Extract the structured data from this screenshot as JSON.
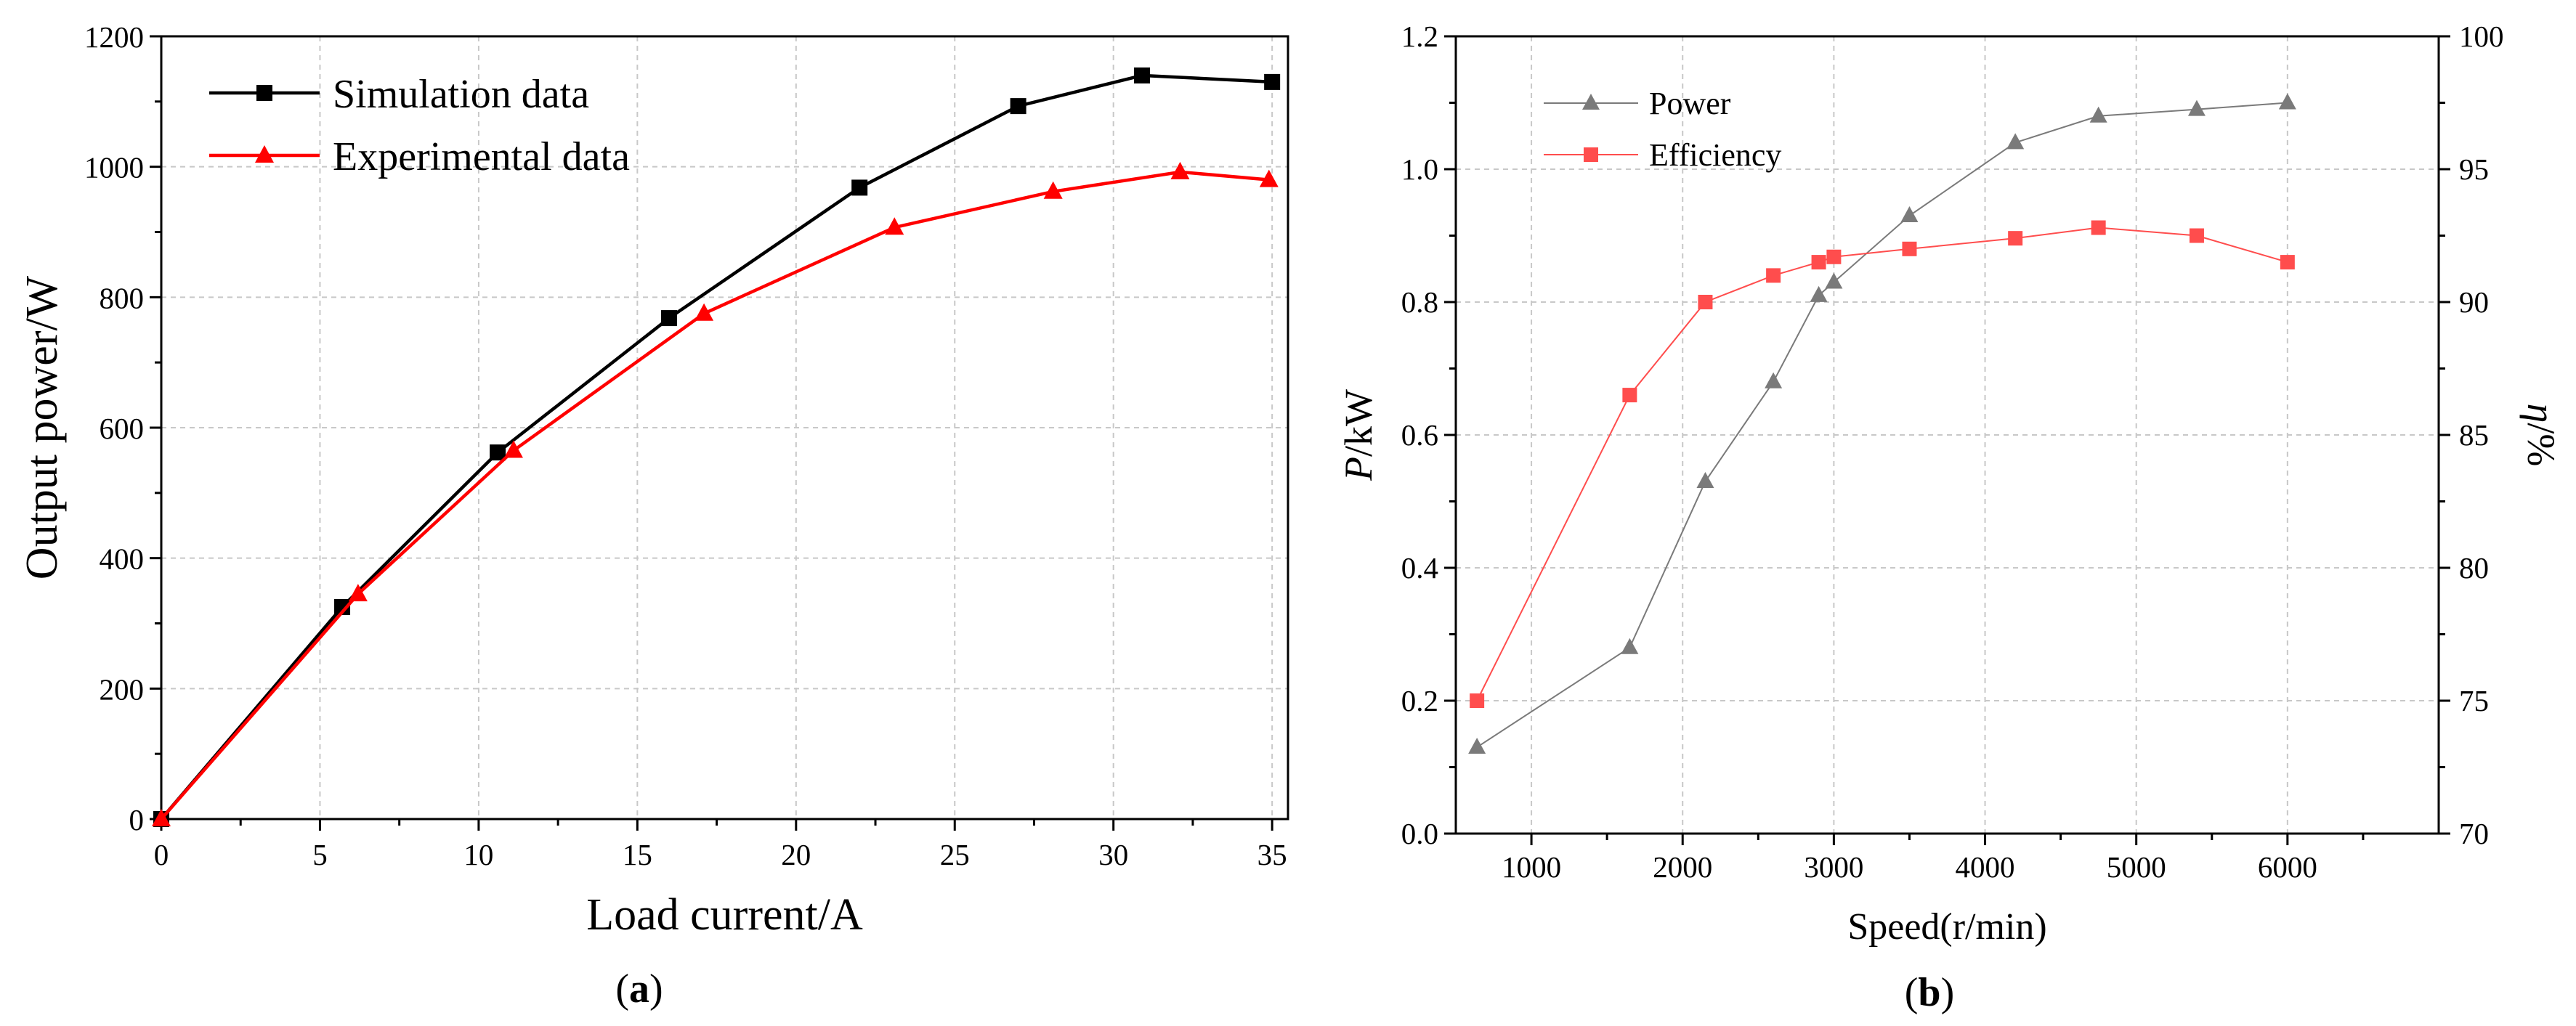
{
  "chart_data": [
    {
      "type": "line",
      "panel_label": "a",
      "xlabel": "Load current/A",
      "ylabel": "Output power/W",
      "xlim": [
        0,
        35.5
      ],
      "ylim": [
        0,
        1200
      ],
      "xticks": [
        0,
        5,
        10,
        15,
        20,
        25,
        30,
        35
      ],
      "yticks": [
        0,
        200,
        400,
        600,
        800,
        1000,
        1200
      ],
      "grid": true,
      "legend_position": "top-left",
      "series": [
        {
          "name": "Simulation data",
          "color": "#000000",
          "marker": "square",
          "points": [
            [
              0,
              0
            ],
            [
              5.7,
              325
            ],
            [
              10.6,
              562
            ],
            [
              16.0,
              768
            ],
            [
              22.0,
              968
            ],
            [
              27.0,
              1093
            ],
            [
              30.9,
              1140
            ],
            [
              35.0,
              1130
            ]
          ]
        },
        {
          "name": "Experimental data",
          "color": "#ff0000",
          "marker": "triangle",
          "points": [
            [
              0,
              0
            ],
            [
              6.2,
              345
            ],
            [
              11.1,
              565
            ],
            [
              17.1,
              775
            ],
            [
              23.1,
              907
            ],
            [
              28.1,
              962
            ],
            [
              32.1,
              992
            ],
            [
              34.9,
              980
            ]
          ]
        }
      ]
    },
    {
      "type": "line",
      "panel_label": "b",
      "xlabel": "Speed(r/min)",
      "ylabel_italic": "P",
      "ylabel_rest": "/kW",
      "y2label_italic": "η",
      "y2label_rest": "/%",
      "xlim": [
        500,
        7000
      ],
      "ylim": [
        0,
        1.2
      ],
      "y2lim": [
        70,
        100
      ],
      "xticks": [
        1000,
        2000,
        3000,
        4000,
        5000,
        6000
      ],
      "yticks": [
        "0.0",
        "0.2",
        "0.4",
        "0.6",
        "0.8",
        "1.0",
        "1.2"
      ],
      "y2ticks": [
        70,
        75,
        80,
        85,
        90,
        95,
        100
      ],
      "grid": true,
      "legend_position": "top-left",
      "series": [
        {
          "name": "Power",
          "axis": "left",
          "color": "#7a7a7a",
          "marker": "triangle",
          "points": [
            [
              640,
              0.13
            ],
            [
              1650,
              0.28
            ],
            [
              2150,
              0.53
            ],
            [
              2600,
              0.68
            ],
            [
              2900,
              0.81
            ],
            [
              3000,
              0.83
            ],
            [
              3500,
              0.93
            ],
            [
              4200,
              1.04
            ],
            [
              4750,
              1.08
            ],
            [
              5400,
              1.09
            ],
            [
              6000,
              1.1
            ]
          ]
        },
        {
          "name": "Efficiency",
          "axis": "right",
          "color": "#ff4d4d",
          "marker": "square",
          "points": [
            [
              640,
              75.0
            ],
            [
              1650,
              86.5
            ],
            [
              2150,
              90.0
            ],
            [
              2600,
              91.0
            ],
            [
              2900,
              91.5
            ],
            [
              3000,
              91.7
            ],
            [
              3500,
              92.0
            ],
            [
              4200,
              92.4
            ],
            [
              4750,
              92.8
            ],
            [
              5400,
              92.5
            ],
            [
              6000,
              91.5
            ]
          ]
        }
      ]
    }
  ]
}
